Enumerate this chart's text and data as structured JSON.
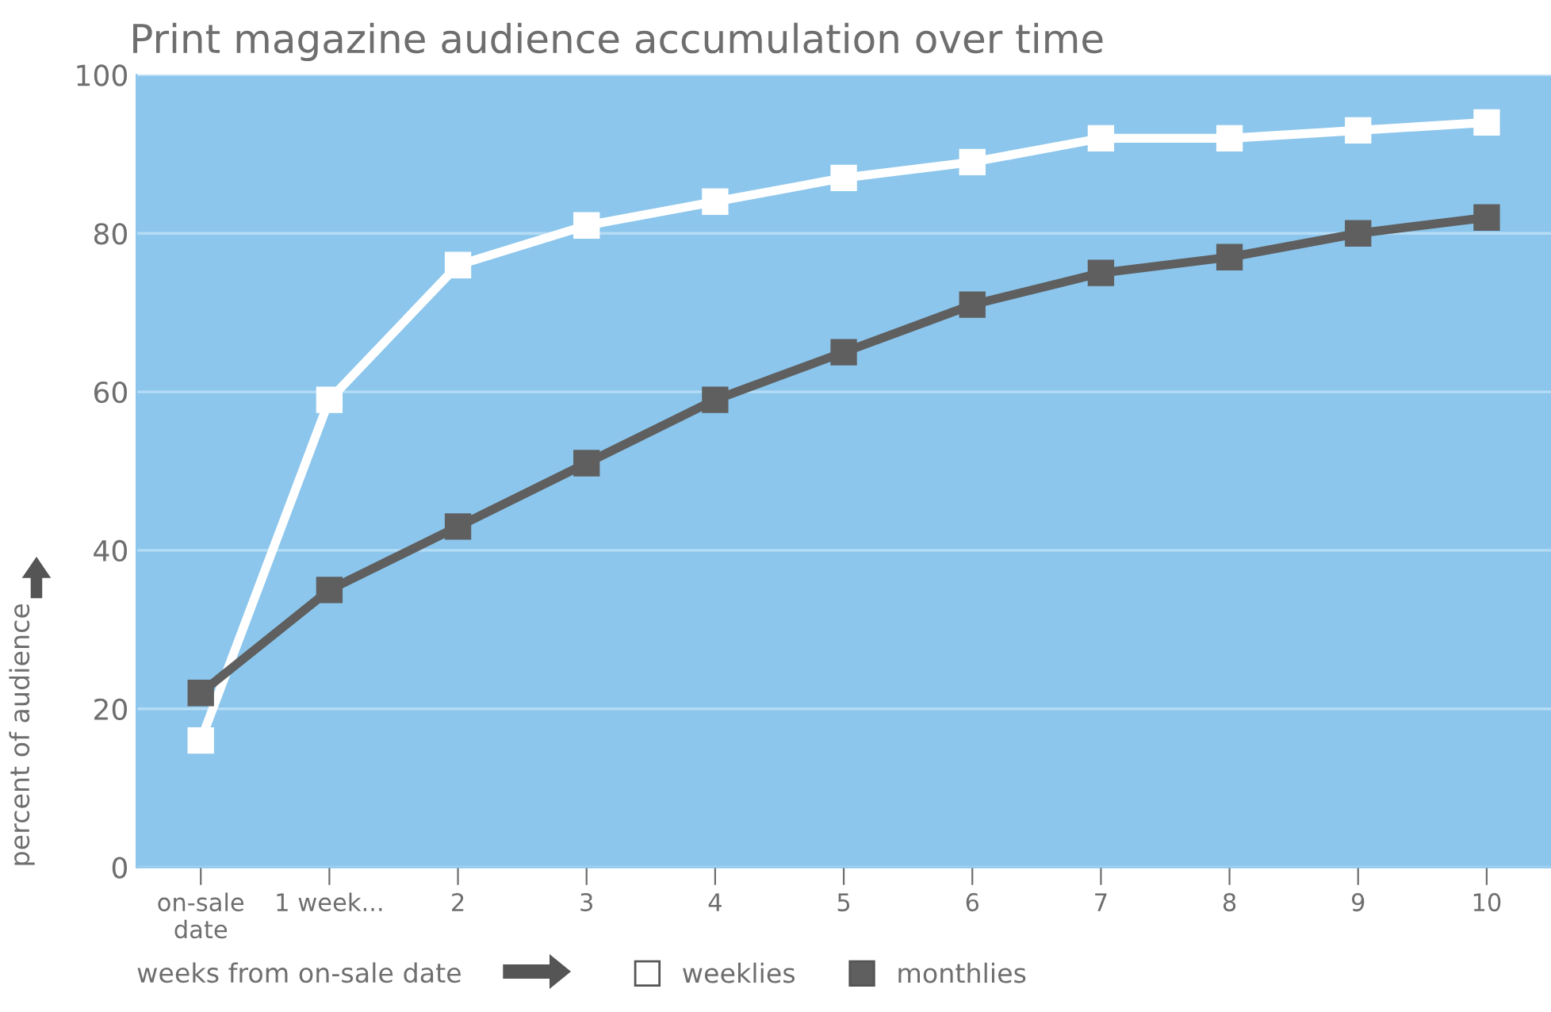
{
  "chart_data": {
    "type": "line",
    "title": "Print magazine audience accumulation over time",
    "xlabel": "weeks from on-sale date",
    "ylabel": "percent of audience",
    "categories": [
      "on-sale\ndate",
      "1 week...",
      "2",
      "3",
      "4",
      "5",
      "6",
      "7",
      "8",
      "9",
      "10"
    ],
    "series": [
      {
        "name": "weeklies",
        "color": "#ffffff",
        "values": [
          16,
          59,
          76,
          81,
          84,
          87,
          89,
          92,
          92,
          93,
          94
        ]
      },
      {
        "name": "monthlies",
        "color": "#5f5f5f",
        "values": [
          22,
          35,
          43,
          51,
          59,
          65,
          71,
          75,
          77,
          80,
          82
        ]
      }
    ],
    "ylim": [
      0,
      100
    ],
    "yticks": [
      0,
      20,
      40,
      60,
      80,
      100
    ],
    "grid": "y",
    "legend": "bottom",
    "marker": "square",
    "line_style": "solid"
  }
}
